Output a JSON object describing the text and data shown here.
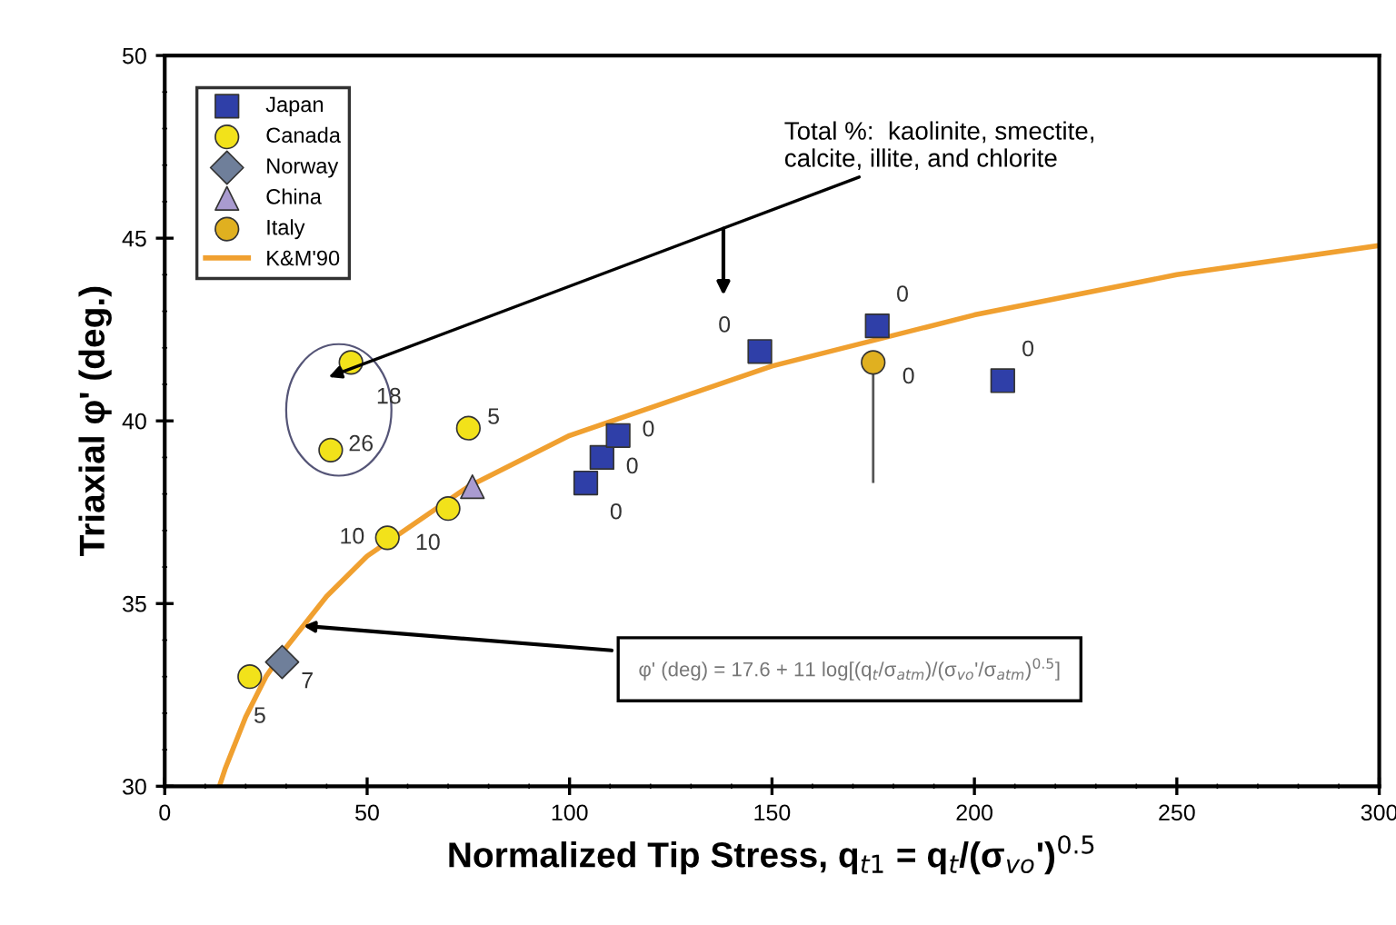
{
  "chart_data": {
    "type": "scatter",
    "xlabel": "Normalized Tip Stress, q$_{t1}$ = q$_{t}$/(σ$_{vo}$')$^{0.5}$",
    "ylabel": "Triaxial φ' (deg.)",
    "xlim": [
      0,
      300
    ],
    "ylim": [
      30,
      50
    ],
    "xticks": [
      0,
      50,
      100,
      150,
      200,
      250,
      300
    ],
    "yticks": [
      30,
      35,
      40,
      45,
      50
    ],
    "grid": false,
    "legend": "top left",
    "series": [
      {
        "name": "Japan",
        "color": "#2f3fa8",
        "marker": "square",
        "x": [
          104,
          108,
          112,
          147,
          176,
          207
        ],
        "values": [
          38.3,
          39.0,
          39.6,
          41.9,
          42.6,
          41.1
        ]
      },
      {
        "name": "Canada",
        "color": "#f2e21a",
        "marker": "circle",
        "x": [
          46,
          41,
          75,
          55,
          70,
          21
        ],
        "values": [
          41.6,
          39.2,
          39.8,
          36.8,
          37.6,
          33.0
        ]
      },
      {
        "name": "Norway",
        "color": "#6f7f9a",
        "marker": "diamond",
        "x": [
          29
        ],
        "values": [
          33.4
        ]
      },
      {
        "name": "China",
        "color": "#a99bd0",
        "marker": "triangle",
        "x": [
          76
        ],
        "values": [
          38.2
        ]
      },
      {
        "name": "Italy",
        "color": "#e0b020",
        "marker": "circle",
        "x": [
          175
        ],
        "values": [
          41.6
        ],
        "errors": [
          [
            38.3,
            41.6
          ]
        ]
      },
      {
        "name": "K&M'90",
        "type": "line",
        "color": "#f0a030",
        "marker": "none",
        "line_style": "solid",
        "x": [
          13.5,
          15,
          20,
          25,
          30,
          40,
          50,
          75,
          100,
          150,
          200,
          250,
          300
        ],
        "values": [
          30.0,
          30.5,
          31.9,
          33.0,
          33.8,
          35.2,
          36.3,
          38.2,
          39.6,
          41.5,
          42.9,
          44.0,
          44.8
        ]
      }
    ],
    "annotations": [
      {
        "text": "0",
        "x": 104,
        "y": 38.3
      },
      {
        "text": "0",
        "x": 108,
        "y": 39.0
      },
      {
        "text": "0",
        "x": 112,
        "y": 39.6
      },
      {
        "text": "0",
        "x": 147,
        "y": 41.9
      },
      {
        "text": "0",
        "x": 176,
        "y": 42.6
      },
      {
        "text": "0",
        "x": 207,
        "y": 41.1
      },
      {
        "text": "18",
        "x": 46,
        "y": 41.6
      },
      {
        "text": "26",
        "x": 41,
        "y": 39.2
      },
      {
        "text": "5",
        "x": 75,
        "y": 39.8
      },
      {
        "text": "10",
        "x": 55,
        "y": 36.8
      },
      {
        "text": "10",
        "x": 70,
        "y": 37.6
      },
      {
        "text": "5",
        "x": 21,
        "y": 33.0
      },
      {
        "text": "7",
        "x": 29,
        "y": 33.4
      },
      {
        "text": "0",
        "x": 175,
        "y": 41.6
      },
      "Total %:  kaolinite, smectite,\ncalcite, illite, and chlorite",
      "φ' (deg) = 17.6 + 11 log[(q$_{t}$/σ$_{atm}$)/(σ$_{vo}$'/σ$_{atm}$)$^{0.5}$]"
    ]
  }
}
